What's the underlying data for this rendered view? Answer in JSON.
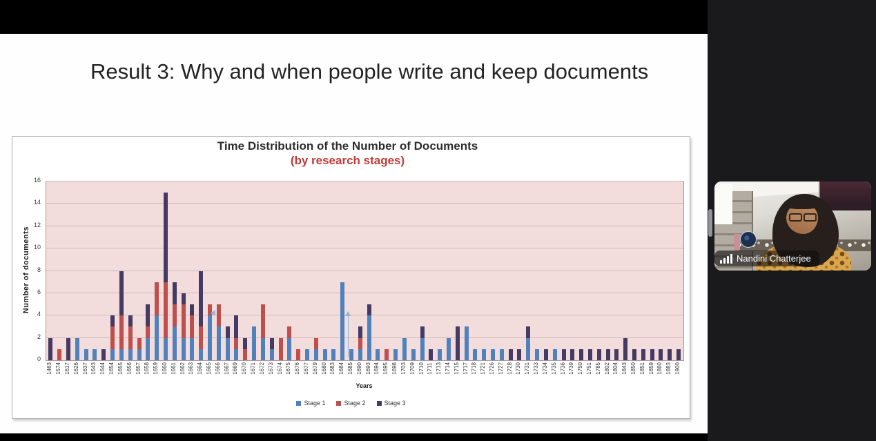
{
  "slide": {
    "title": "Result 3: Why and when people write and keep documents"
  },
  "chart_data": {
    "type": "bar",
    "stacked": true,
    "title": "Time Distribution of the Number of Documents",
    "subtitle": "(by research stages)",
    "subtitle_color": "#c13a36",
    "xlabel": "Years",
    "ylabel": "Number of documents",
    "ylim": [
      0,
      16
    ],
    "ytick_step": 2,
    "grid": true,
    "legend_position": "bottom",
    "plot_background": "#f2dddc",
    "annotation_color": "#95b3d7",
    "categories": [
      "1463",
      "1574",
      "1617",
      "1626",
      "1637",
      "1643",
      "1644",
      "1654",
      "1655",
      "1656",
      "1657",
      "1658",
      "1659",
      "1660",
      "1661",
      "1662",
      "1663",
      "1664",
      "1665",
      "1666",
      "1667",
      "1669",
      "1670",
      "1671",
      "1672",
      "1673",
      "1674",
      "1675",
      "1676",
      "1677",
      "1679",
      "1680",
      "1683",
      "1684",
      "1685",
      "1690",
      "1693",
      "1694",
      "1695",
      "1698",
      "1703",
      "1709",
      "1710",
      "1711",
      "1713",
      "1714",
      "1715",
      "1717",
      "1718",
      "1721",
      "1726",
      "1727",
      "1728",
      "1730",
      "1731",
      "1733",
      "1734",
      "1735",
      "1736",
      "1739",
      "1750",
      "1751",
      "1785",
      "1802",
      "1804",
      "1843",
      "1850",
      "1851",
      "1859",
      "1860",
      "1883",
      "1900"
    ],
    "series": [
      {
        "name": "Stage 1",
        "color": "#4f81bd",
        "values": [
          0,
          0,
          0,
          2,
          1,
          1,
          0,
          1,
          1,
          1,
          1,
          2,
          4,
          2,
          3,
          2,
          2,
          1,
          4,
          3,
          2,
          1,
          0,
          3,
          2,
          1,
          0,
          2,
          0,
          1,
          1,
          1,
          1,
          7,
          1,
          1,
          4,
          1,
          0,
          1,
          2,
          1,
          2,
          0,
          1,
          2,
          0,
          3,
          1,
          1,
          1,
          1,
          0,
          0,
          2,
          1,
          0,
          1,
          0,
          0,
          0,
          0,
          0,
          0,
          0,
          0,
          0,
          0,
          0,
          0,
          0,
          0
        ]
      },
      {
        "name": "Stage 2",
        "color": "#bf4f4c",
        "values": [
          0,
          1,
          0,
          0,
          0,
          0,
          0,
          2,
          3,
          2,
          1,
          1,
          3,
          5,
          2,
          3,
          2,
          2,
          1,
          2,
          0,
          1,
          1,
          0,
          3,
          0,
          2,
          1,
          1,
          0,
          1,
          0,
          0,
          0,
          0,
          1,
          0,
          0,
          1,
          0,
          0,
          0,
          0,
          0,
          0,
          0,
          0,
          0,
          0,
          0,
          0,
          0,
          0,
          0,
          0,
          0,
          0,
          0,
          0,
          0,
          0,
          0,
          0,
          0,
          0,
          0,
          0,
          0,
          0,
          0,
          0,
          0
        ]
      },
      {
        "name": "Stage 3",
        "color": "#443a63",
        "values": [
          2,
          0,
          2,
          0,
          0,
          0,
          1,
          1,
          4,
          1,
          0,
          2,
          0,
          8,
          2,
          1,
          1,
          5,
          0,
          0,
          1,
          2,
          1,
          0,
          0,
          1,
          0,
          0,
          0,
          0,
          0,
          0,
          0,
          0,
          0,
          1,
          1,
          0,
          0,
          0,
          0,
          0,
          1,
          1,
          0,
          0,
          3,
          0,
          0,
          0,
          0,
          0,
          1,
          1,
          1,
          0,
          1,
          0,
          1,
          1,
          1,
          1,
          1,
          1,
          1,
          2,
          1,
          1,
          1,
          1,
          1,
          1
        ]
      }
    ],
    "annotations": [
      {
        "kind": "up-arrow",
        "at_category": "1685",
        "from_value": 0.3,
        "to_value": 4.3
      },
      {
        "kind": "arrowhead",
        "at_category": "1665",
        "value": 4.1
      }
    ]
  },
  "participants_panel": {
    "participant": {
      "name": "Nandini Chatterjee",
      "icon": "signal-bars-icon"
    }
  }
}
